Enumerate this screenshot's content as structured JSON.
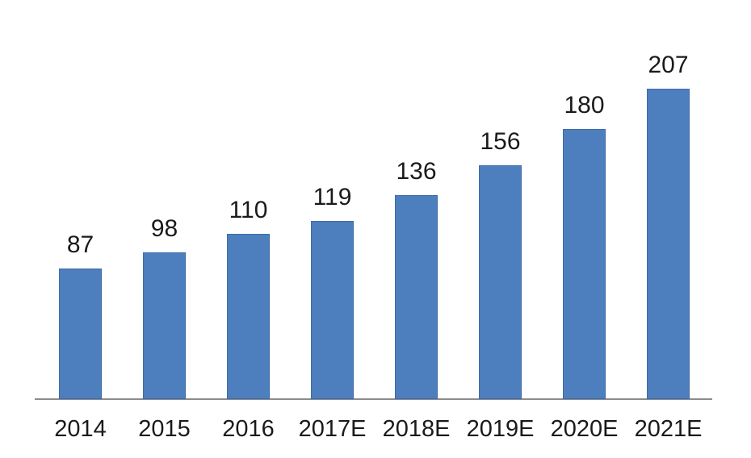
{
  "chart_data": {
    "type": "bar",
    "categories": [
      "2014",
      "2015",
      "2016",
      "2017E",
      "2018E",
      "2019E",
      "2020E",
      "2021E"
    ],
    "values": [
      87,
      98,
      110,
      119,
      136,
      156,
      180,
      207
    ],
    "data_labels": [
      "87",
      "98",
      "110",
      "119",
      "136",
      "156",
      "180",
      "207"
    ],
    "title": "",
    "xlabel": "",
    "ylabel": "",
    "ylim": [
      0,
      266
    ],
    "grid": false,
    "legend": "none",
    "y_axis_visible": false,
    "bar_color": "#4d7ebd",
    "bar_border_color": "#3e6ca6",
    "axis_line_color": "#8c8c8c",
    "label_color": "#1a1a1a"
  }
}
